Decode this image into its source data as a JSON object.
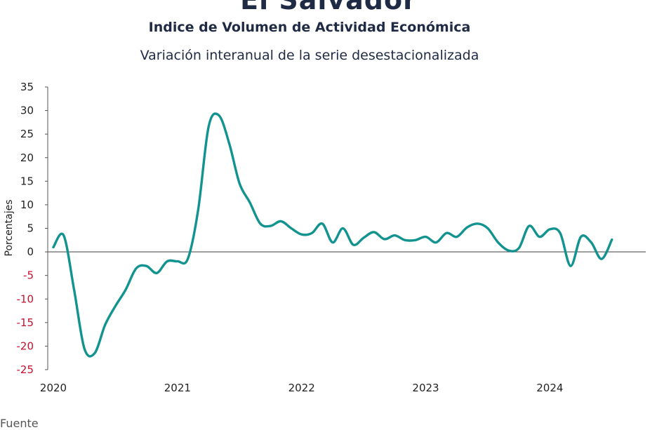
{
  "header": {
    "title": "El Salvador",
    "subtitle": "Indice de Volumen de  Actividad Económica",
    "subtitle2": "Variación interanual de la serie desestacionalizada"
  },
  "footer": {
    "source": "Fuente"
  },
  "colors": {
    "line": "#12938f",
    "negative_tick": "#c8102e",
    "axis": "#555555"
  },
  "chart_data": {
    "type": "line",
    "ylabel": "Porcentajes",
    "ylim": [
      -25,
      35
    ],
    "yticks": [
      35,
      30,
      25,
      20,
      15,
      10,
      5,
      0,
      -5,
      -10,
      -15,
      -20,
      -25
    ],
    "xlim": [
      2020.0,
      2024.75
    ],
    "xticks": [
      {
        "value": 2020.0,
        "label": "2020"
      },
      {
        "value": 2021.0,
        "label": "2021"
      },
      {
        "value": 2022.0,
        "label": "2022"
      },
      {
        "value": 2023.0,
        "label": "2023"
      },
      {
        "value": 2024.0,
        "label": "2024"
      }
    ],
    "grid": false,
    "series": [
      {
        "values": [
          [
            2020.0,
            1.0
          ],
          [
            2020.083,
            3.5
          ],
          [
            2020.167,
            -8.0
          ],
          [
            2020.25,
            -20.5
          ],
          [
            2020.333,
            -21.5
          ],
          [
            2020.417,
            -15.5
          ],
          [
            2020.5,
            -11.5
          ],
          [
            2020.583,
            -8.0
          ],
          [
            2020.667,
            -3.5
          ],
          [
            2020.75,
            -3.0
          ],
          [
            2020.833,
            -4.5
          ],
          [
            2020.917,
            -2.0
          ],
          [
            2021.0,
            -2.0
          ],
          [
            2021.083,
            -1.5
          ],
          [
            2021.167,
            9.0
          ],
          [
            2021.25,
            26.5
          ],
          [
            2021.333,
            29.0
          ],
          [
            2021.417,
            23.0
          ],
          [
            2021.5,
            14.5
          ],
          [
            2021.583,
            10.5
          ],
          [
            2021.667,
            6.0
          ],
          [
            2021.75,
            5.5
          ],
          [
            2021.833,
            6.5
          ],
          [
            2021.917,
            5.0
          ],
          [
            2022.0,
            3.7
          ],
          [
            2022.083,
            4.0
          ],
          [
            2022.167,
            6.0
          ],
          [
            2022.25,
            2.0
          ],
          [
            2022.333,
            5.0
          ],
          [
            2022.417,
            1.5
          ],
          [
            2022.5,
            3.0
          ],
          [
            2022.583,
            4.2
          ],
          [
            2022.667,
            2.7
          ],
          [
            2022.75,
            3.5
          ],
          [
            2022.833,
            2.5
          ],
          [
            2022.917,
            2.5
          ],
          [
            2023.0,
            3.2
          ],
          [
            2023.083,
            2.0
          ],
          [
            2023.167,
            4.0
          ],
          [
            2023.25,
            3.2
          ],
          [
            2023.333,
            5.2
          ],
          [
            2023.417,
            6.0
          ],
          [
            2023.5,
            5.0
          ],
          [
            2023.583,
            2.0
          ],
          [
            2023.667,
            0.3
          ],
          [
            2023.75,
            0.8
          ],
          [
            2023.833,
            5.5
          ],
          [
            2023.917,
            3.2
          ],
          [
            2024.0,
            4.8
          ],
          [
            2024.083,
            4.0
          ],
          [
            2024.167,
            -3.0
          ],
          [
            2024.25,
            3.2
          ],
          [
            2024.333,
            2.0
          ],
          [
            2024.417,
            -1.5
          ],
          [
            2024.5,
            2.6
          ]
        ]
      }
    ]
  }
}
